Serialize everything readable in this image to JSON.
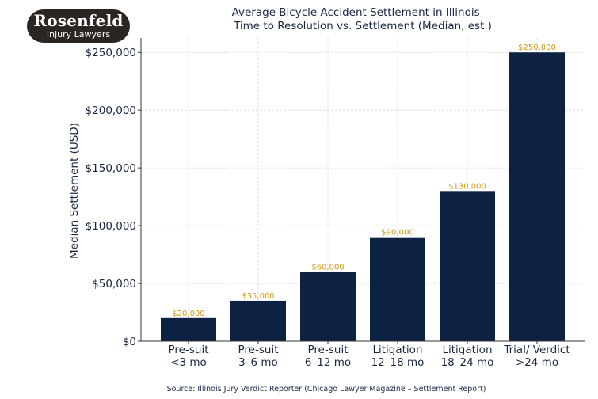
{
  "logo": {
    "brand": "Rosenfeld",
    "tagline": "Injury Lawyers"
  },
  "source": "Source: Illinois Jury Verdict Reporter (Chicago Lawyer Magazine – Settlement Report)",
  "colors": {
    "bar": "#0d2242",
    "value_label": "#d49a12",
    "text": "#1a2744"
  },
  "chart_data": {
    "type": "bar",
    "title": "Average Bicycle Accident Settlement in Illinois —",
    "subtitle": "Time to Resolution vs. Settlement (Median, est.)",
    "xlabel": "",
    "ylabel": "Median Settlement (USD)",
    "categories": [
      [
        "Pre-suit",
        "<3 mo"
      ],
      [
        "Pre-suit",
        "3–6 mo"
      ],
      [
        "Pre-suit",
        "6–12 mo"
      ],
      [
        "Litigation",
        "12–18 mo"
      ],
      [
        "Litigation",
        "18–24 mo"
      ],
      [
        "Trial/ Verdict",
        ">24 mo"
      ]
    ],
    "values": [
      20000,
      35000,
      60000,
      90000,
      130000,
      250000
    ],
    "value_labels": [
      "$20,000",
      "$35,000",
      "$60,000",
      "$90,000",
      "$130,000",
      "$250,000"
    ],
    "yticks": [
      0,
      50000,
      100000,
      150000,
      200000,
      250000
    ],
    "ytick_labels": [
      "$0",
      "$50,000",
      "$100,000",
      "$150,000",
      "$200,000",
      "$250,000"
    ],
    "ylim": [
      0,
      262500
    ],
    "grid": true,
    "legend": "none"
  }
}
